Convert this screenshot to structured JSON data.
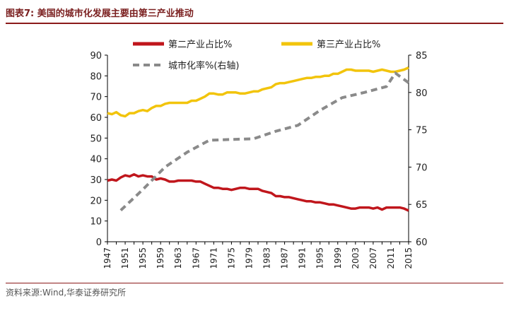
{
  "title": "图表7:  美国的城市化发展主要由第三产业推动",
  "source": "资料来源:Wind,华泰证券研究所",
  "colors": {
    "series_secondary": "#c0161c",
    "series_tertiary": "#f2c40c",
    "series_urban": "#8a8a8a",
    "axis": "#000000",
    "title_rule": "#8b1a1a"
  },
  "chart_data": {
    "type": "line",
    "title": "",
    "xlabel": "",
    "ylabel": "",
    "y2label": "",
    "xlim": [
      1947,
      2015
    ],
    "ylim": [
      0,
      90
    ],
    "y2lim": [
      60,
      85
    ],
    "x_ticks": [
      1947,
      1951,
      1955,
      1959,
      1963,
      1967,
      1971,
      1975,
      1979,
      1983,
      1987,
      1991,
      1995,
      1999,
      2003,
      2007,
      2011,
      2015
    ],
    "y_ticks": [
      0,
      10,
      20,
      30,
      40,
      50,
      60,
      70,
      80,
      90
    ],
    "y2_ticks": [
      60,
      65,
      70,
      75,
      80,
      85
    ],
    "legend_position": "top",
    "grid": false,
    "series": [
      {
        "name": "第二产业占比%",
        "axis": "left",
        "style": "solid",
        "x": [
          1947,
          1948,
          1949,
          1950,
          1951,
          1952,
          1953,
          1954,
          1955,
          1956,
          1957,
          1958,
          1959,
          1960,
          1961,
          1962,
          1963,
          1964,
          1965,
          1966,
          1967,
          1968,
          1969,
          1970,
          1971,
          1972,
          1973,
          1974,
          1975,
          1976,
          1977,
          1978,
          1979,
          1980,
          1981,
          1982,
          1983,
          1984,
          1985,
          1986,
          1987,
          1988,
          1989,
          1990,
          1991,
          1992,
          1993,
          1994,
          1995,
          1996,
          1997,
          1998,
          1999,
          2000,
          2001,
          2002,
          2003,
          2004,
          2005,
          2006,
          2007,
          2008,
          2009,
          2010,
          2011,
          2012,
          2013,
          2014,
          2015
        ],
        "values": [
          29.5,
          30,
          29.5,
          31,
          32,
          31.5,
          32.5,
          31.5,
          32,
          31.5,
          31.5,
          30,
          30.5,
          30,
          29,
          29,
          29.5,
          29.5,
          29.5,
          29.5,
          29,
          29,
          28,
          27,
          26,
          26,
          25.5,
          25.5,
          25,
          25.5,
          26,
          26,
          25.5,
          25.5,
          25.5,
          24.5,
          24,
          23.5,
          22,
          22,
          21.5,
          21.5,
          21,
          20.5,
          20,
          19.5,
          19.5,
          19,
          19,
          18.5,
          18,
          18,
          17.5,
          17,
          16.5,
          16,
          16,
          16.5,
          16.5,
          16.5,
          16,
          16.5,
          15.5,
          16.5,
          16.5,
          16.5,
          16.5,
          16,
          15
        ]
      },
      {
        "name": "第三产业占比%",
        "axis": "left",
        "style": "solid",
        "x": [
          1947,
          1948,
          1949,
          1950,
          1951,
          1952,
          1953,
          1954,
          1955,
          1956,
          1957,
          1958,
          1959,
          1960,
          1961,
          1962,
          1963,
          1964,
          1965,
          1966,
          1967,
          1968,
          1969,
          1970,
          1971,
          1972,
          1973,
          1974,
          1975,
          1976,
          1977,
          1978,
          1979,
          1980,
          1981,
          1982,
          1983,
          1984,
          1985,
          1986,
          1987,
          1988,
          1989,
          1990,
          1991,
          1992,
          1993,
          1994,
          1995,
          1996,
          1997,
          1998,
          1999,
          2000,
          2001,
          2002,
          2003,
          2004,
          2005,
          2006,
          2007,
          2008,
          2009,
          2010,
          2011,
          2012,
          2013,
          2014,
          2015
        ],
        "values": [
          62,
          61.5,
          62.5,
          61,
          60.5,
          62,
          62,
          63,
          63.5,
          63,
          64.5,
          65.5,
          65.5,
          66.5,
          67,
          67,
          67,
          67,
          67,
          68,
          68,
          69,
          70,
          71.5,
          71.5,
          71,
          71,
          72,
          72,
          72,
          71.5,
          71.5,
          72,
          72.5,
          72.5,
          73.5,
          74,
          74.5,
          76,
          76.5,
          76.5,
          77,
          77.5,
          78,
          78.5,
          79,
          79,
          79.5,
          79.5,
          80,
          80,
          81,
          81,
          82,
          83,
          83,
          82.5,
          82.5,
          82.5,
          82.5,
          82,
          82.5,
          83,
          82.5,
          82,
          82,
          82.5,
          83,
          84
        ]
      },
      {
        "name": "城市化率%(右轴)",
        "axis": "right",
        "style": "dashed",
        "x": [
          1950,
          1955,
          1960,
          1965,
          1970,
          1975,
          1980,
          1985,
          1990,
          1995,
          2000,
          2005,
          2010,
          2012,
          2015
        ],
        "values": [
          64.2,
          67,
          70,
          72,
          73.6,
          73.7,
          73.8,
          74.8,
          75.6,
          77.6,
          79.3,
          80.0,
          80.8,
          82.6,
          81.3
        ]
      }
    ]
  }
}
